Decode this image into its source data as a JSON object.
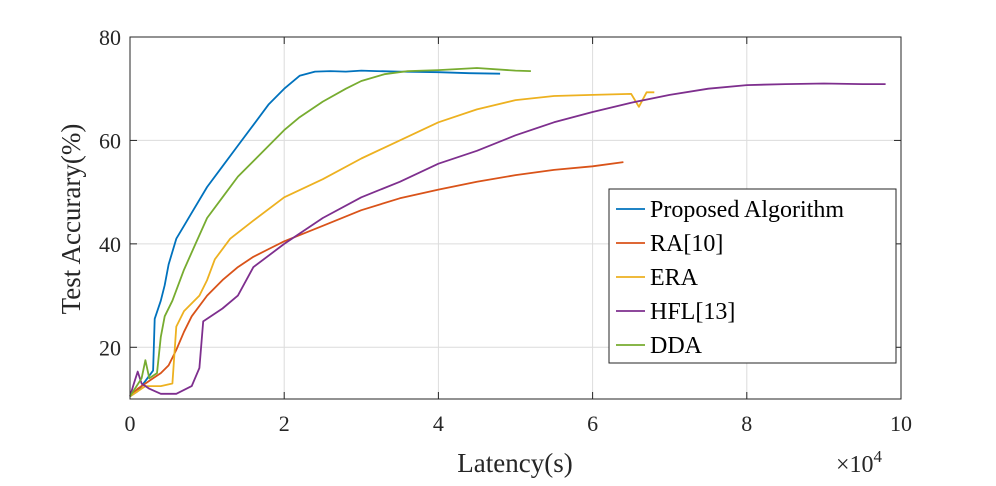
{
  "chart_data": {
    "type": "line",
    "title": "",
    "xlabel": "Latency(s)",
    "ylabel": "Test Accurary(%)",
    "x_exponent_label": "×10",
    "x_exponent_power": "4",
    "xlim": [
      0,
      10
    ],
    "ylim": [
      10,
      80
    ],
    "x_ticks": [
      0,
      2,
      4,
      6,
      8,
      10
    ],
    "y_ticks": [
      20,
      40,
      60,
      80
    ],
    "x_tick_labels": [
      "0",
      "2",
      "4",
      "6",
      "8",
      "10"
    ],
    "y_tick_labels": [
      "20",
      "40",
      "60",
      "80"
    ],
    "grid": true,
    "legend_position": "right",
    "series": [
      {
        "name": "Proposed Algorithm",
        "color": "#0072BD",
        "points": [
          [
            0,
            10.5
          ],
          [
            0.1,
            11.5
          ],
          [
            0.2,
            13.5
          ],
          [
            0.3,
            15.5
          ],
          [
            0.32,
            25.5
          ],
          [
            0.4,
            29
          ],
          [
            0.45,
            32
          ],
          [
            0.5,
            36
          ],
          [
            0.6,
            41
          ],
          [
            0.7,
            43.5
          ],
          [
            0.8,
            46
          ],
          [
            1.0,
            51
          ],
          [
            1.2,
            55
          ],
          [
            1.4,
            59
          ],
          [
            1.6,
            63
          ],
          [
            1.8,
            67
          ],
          [
            2.0,
            70
          ],
          [
            2.2,
            72.5
          ],
          [
            2.4,
            73.3
          ],
          [
            2.6,
            73.4
          ],
          [
            2.8,
            73.3
          ],
          [
            3.0,
            73.5
          ],
          [
            3.2,
            73.4
          ],
          [
            3.5,
            73.3
          ],
          [
            4.0,
            73.2
          ],
          [
            4.4,
            73.0
          ],
          [
            4.8,
            72.9
          ]
        ]
      },
      {
        "name": "RA[10]",
        "color": "#D95319",
        "points": [
          [
            0,
            10.5
          ],
          [
            0.1,
            12
          ],
          [
            0.2,
            13
          ],
          [
            0.3,
            14
          ],
          [
            0.4,
            15
          ],
          [
            0.5,
            16.5
          ],
          [
            0.6,
            19.5
          ],
          [
            0.7,
            23
          ],
          [
            0.8,
            26
          ],
          [
            1.0,
            30
          ],
          [
            1.2,
            33
          ],
          [
            1.4,
            35.5
          ],
          [
            1.6,
            37.5
          ],
          [
            1.8,
            39
          ],
          [
            2.0,
            40.5
          ],
          [
            2.5,
            43.5
          ],
          [
            3.0,
            46.5
          ],
          [
            3.5,
            48.8
          ],
          [
            4.0,
            50.5
          ],
          [
            4.5,
            52
          ],
          [
            5.0,
            53.3
          ],
          [
            5.5,
            54.3
          ],
          [
            6.0,
            55
          ],
          [
            6.4,
            55.8
          ]
        ]
      },
      {
        "name": "ERA",
        "color": "#EDB120",
        "points": [
          [
            0,
            10.5
          ],
          [
            0.1,
            11.5
          ],
          [
            0.2,
            12.5
          ],
          [
            0.4,
            12.5
          ],
          [
            0.55,
            13
          ],
          [
            0.6,
            24
          ],
          [
            0.7,
            27
          ],
          [
            0.9,
            30
          ],
          [
            1.0,
            33
          ],
          [
            1.1,
            37
          ],
          [
            1.3,
            41
          ],
          [
            1.6,
            44.5
          ],
          [
            2.0,
            49
          ],
          [
            2.5,
            52.5
          ],
          [
            3.0,
            56.5
          ],
          [
            3.5,
            60
          ],
          [
            4.0,
            63.5
          ],
          [
            4.5,
            66
          ],
          [
            5.0,
            67.8
          ],
          [
            5.5,
            68.6
          ],
          [
            6.0,
            68.8
          ],
          [
            6.5,
            69
          ],
          [
            6.6,
            66.5
          ],
          [
            6.7,
            69.3
          ],
          [
            6.8,
            69.3
          ]
        ]
      },
      {
        "name": "HFL[13]",
        "color": "#7E2F8E",
        "points": [
          [
            0,
            10.5
          ],
          [
            0.05,
            13
          ],
          [
            0.1,
            15.3
          ],
          [
            0.15,
            13
          ],
          [
            0.25,
            12
          ],
          [
            0.4,
            11
          ],
          [
            0.6,
            11
          ],
          [
            0.8,
            12.5
          ],
          [
            0.9,
            16
          ],
          [
            0.95,
            25
          ],
          [
            1.2,
            27.5
          ],
          [
            1.4,
            30
          ],
          [
            1.6,
            35.5
          ],
          [
            2.0,
            40
          ],
          [
            2.5,
            45
          ],
          [
            3.0,
            49
          ],
          [
            3.5,
            52
          ],
          [
            4.0,
            55.5
          ],
          [
            4.5,
            58
          ],
          [
            5.0,
            61
          ],
          [
            5.5,
            63.5
          ],
          [
            6.0,
            65.5
          ],
          [
            6.5,
            67.3
          ],
          [
            7.0,
            68.8
          ],
          [
            7.5,
            70
          ],
          [
            8.0,
            70.7
          ],
          [
            8.5,
            70.9
          ],
          [
            9.0,
            71
          ],
          [
            9.5,
            70.9
          ],
          [
            9.8,
            70.9
          ]
        ]
      },
      {
        "name": "DDA",
        "color": "#77AC30",
        "points": [
          [
            0,
            10.5
          ],
          [
            0.15,
            14
          ],
          [
            0.2,
            17.5
          ],
          [
            0.25,
            14
          ],
          [
            0.35,
            15
          ],
          [
            0.4,
            22
          ],
          [
            0.45,
            26
          ],
          [
            0.55,
            29
          ],
          [
            0.7,
            35
          ],
          [
            0.85,
            40
          ],
          [
            1.0,
            45
          ],
          [
            1.2,
            49
          ],
          [
            1.4,
            53
          ],
          [
            1.6,
            56
          ],
          [
            1.8,
            59
          ],
          [
            2.0,
            62
          ],
          [
            2.2,
            64.5
          ],
          [
            2.5,
            67.5
          ],
          [
            2.8,
            70
          ],
          [
            3.0,
            71.5
          ],
          [
            3.3,
            72.8
          ],
          [
            3.6,
            73.4
          ],
          [
            4.0,
            73.6
          ],
          [
            4.5,
            74
          ],
          [
            5.0,
            73.5
          ],
          [
            5.2,
            73.4
          ]
        ]
      }
    ]
  }
}
